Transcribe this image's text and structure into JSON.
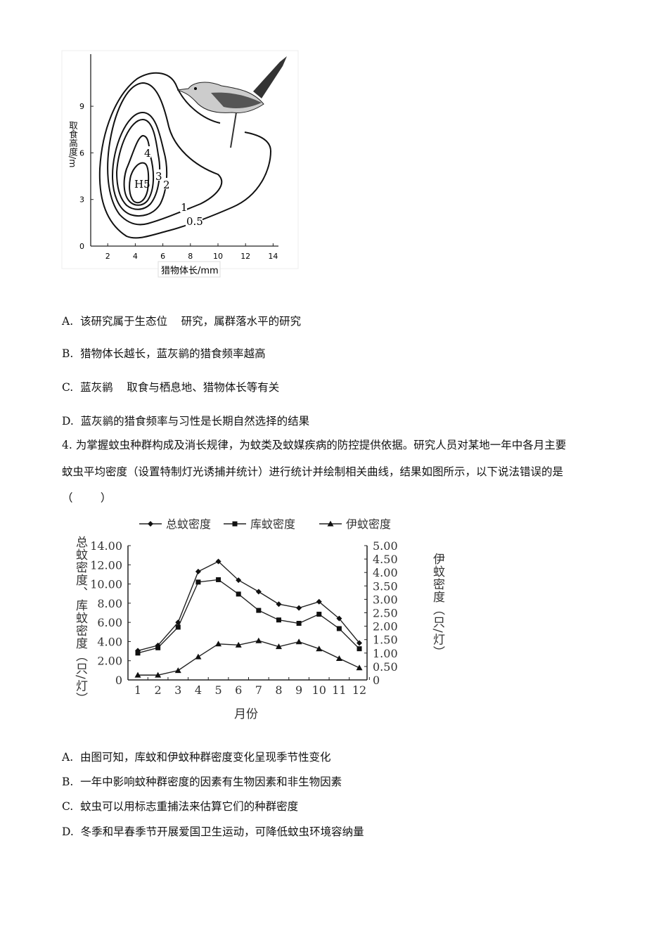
{
  "figure1": {
    "chart_data": {
      "type": "contour",
      "xlabel": "猎物体长/mm",
      "ylabel": "取食高度/m",
      "x_ticks": [
        "2",
        "4",
        "6",
        "8",
        "10",
        "12",
        "14"
      ],
      "y_ticks": [
        "0",
        "3",
        "6",
        "9"
      ],
      "contour_labels": [
        "0.5",
        "1",
        "2",
        "3",
        "4",
        "H5"
      ]
    }
  },
  "q3_options": [
    "A.  该研究属于生态位    研究，属群落水平的研究",
    "B.  猎物体长越长，蓝灰鹟的猎食频率越高",
    "C.  蓝灰鹟    取食与栖息地、猎物体长等有关",
    "D.  蓝灰鹟的猎食频率与习性是长期自然选择的结果"
  ],
  "q4": {
    "lines": [
      "4. 为掌握蚊虫种群构成及消长规律，为蚊类及蚊媒疾病的防控提供依据。研究人员对某地一年中各月主要",
      "蚊虫平均密度（设置特制灯光诱捕并统计）进行统计并绘制相关曲线，结果如图所示，以下说法错误的是",
      "（        ）"
    ],
    "options": [
      "A.  由图可知，库蚊和伊蚊种群密度变化呈现季节性变化",
      "B.  一年中影响蚊种群密度的因素有生物因素和非生物因素",
      "C.  蚊虫可以用标志重捕法来估算它们的种群密度",
      "D.  冬季和早春季节开展爱国卫生运动，可降低蚊虫环境容纳量"
    ]
  },
  "chart_data": {
    "type": "line",
    "xlabel": "月份",
    "ylabel_left": "总蚊密度、库蚊密度（只/灯）",
    "ylabel_right": "伊蚊密度（只/灯）",
    "categories": [
      "1",
      "2",
      "3",
      "4",
      "5",
      "6",
      "7",
      "8",
      "9",
      "10",
      "11",
      "12"
    ],
    "ylim_left": [
      0,
      14
    ],
    "ylim_right": [
      0,
      5
    ],
    "y_ticks_left": [
      "0",
      "2.00",
      "4.00",
      "6.00",
      "8.00",
      "10.00",
      "12.00",
      "14.00"
    ],
    "y_ticks_right": [
      "0",
      "0.50",
      "1.00",
      "1.50",
      "2.00",
      "2.50",
      "3.00",
      "3.50",
      "4.00",
      "4.50",
      "5.00"
    ],
    "legend": "top",
    "grid": false,
    "series": [
      {
        "name": "总蚊密度",
        "marker": "diamond",
        "axis": "left",
        "values": [
          3.05,
          3.6,
          6.0,
          11.3,
          12.35,
          10.4,
          9.2,
          7.9,
          7.5,
          8.15,
          6.4,
          3.85
        ]
      },
      {
        "name": "库蚊密度",
        "marker": "square",
        "axis": "left",
        "values": [
          2.8,
          3.35,
          5.5,
          10.2,
          10.45,
          8.95,
          7.25,
          6.25,
          5.9,
          6.85,
          5.35,
          3.25
        ]
      },
      {
        "name": "伊蚊密度",
        "marker": "triangle",
        "axis": "right",
        "values": [
          0.18,
          0.18,
          0.35,
          0.86,
          1.34,
          1.3,
          1.46,
          1.24,
          1.42,
          1.16,
          0.8,
          0.45
        ]
      }
    ]
  }
}
